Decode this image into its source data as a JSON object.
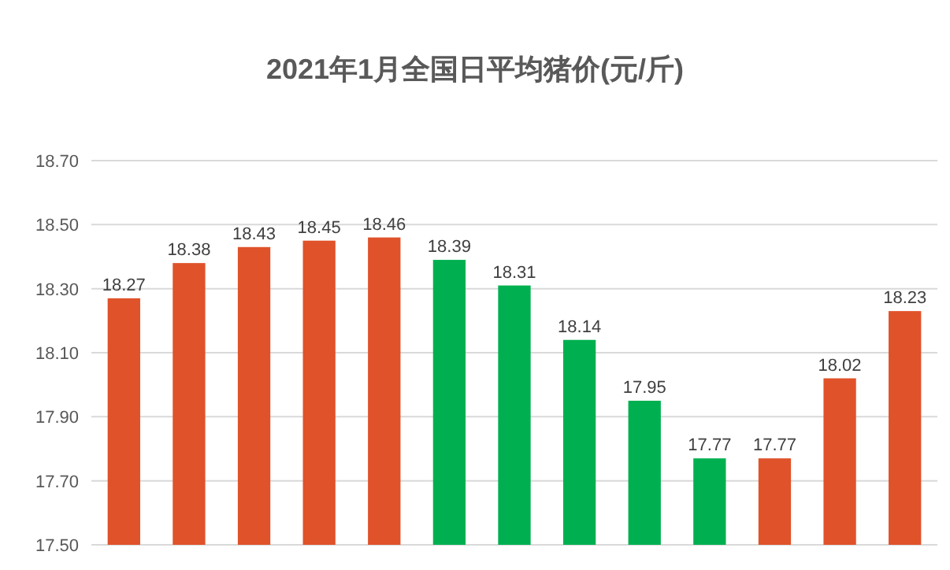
{
  "chart_data": {
    "type": "bar",
    "title": "2021年1月全国日平均猪价(元/斤)",
    "categories": [
      null,
      null,
      null,
      null,
      null,
      null,
      null,
      null,
      null,
      null,
      null,
      null,
      null
    ],
    "values": [
      18.27,
      18.38,
      18.43,
      18.45,
      18.46,
      18.39,
      18.31,
      18.14,
      17.95,
      17.77,
      17.77,
      18.02,
      18.23
    ],
    "colors": [
      "#e0522a",
      "#e0522a",
      "#e0522a",
      "#e0522a",
      "#e0522a",
      "#00b050",
      "#00b050",
      "#00b050",
      "#00b050",
      "#00b050",
      "#e0522a",
      "#e0522a",
      "#e0522a"
    ],
    "ylim": [
      17.5,
      18.7
    ],
    "yticks": [
      {
        "value": 17.5,
        "label": "17.50"
      },
      {
        "value": 17.7,
        "label": "17.70"
      },
      {
        "value": 17.9,
        "label": "17.90"
      },
      {
        "value": 18.1,
        "label": "18.10"
      },
      {
        "value": 18.3,
        "label": "18.30"
      },
      {
        "value": 18.5,
        "label": "18.50"
      },
      {
        "value": 18.7,
        "label": "18.70"
      }
    ],
    "grid": "y",
    "tick_labels": "y",
    "data_labels": true
  }
}
